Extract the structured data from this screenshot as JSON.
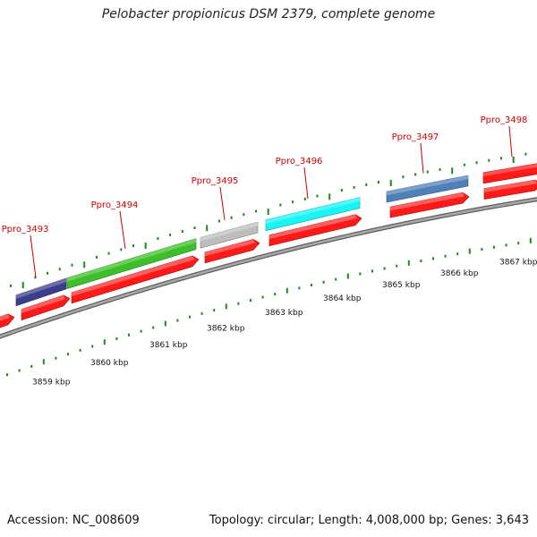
{
  "title": "Pelobacter propionicus DSM 2379, complete genome",
  "footer": {
    "accession": "Accession: NC_008609",
    "summary": "Topology: circular; Length: 4,008,000 bp; Genes: 3,643"
  },
  "colors": {
    "backbone": "#8c8c8c",
    "cds": "#ff1a1a",
    "gene_label": "#cc0000",
    "tick": "#1a8a1a",
    "features": {
      "Ppro_3493": "#3b3d8a",
      "Ppro_3494": "#3cbf28",
      "Ppro_3495": "#bdbdbd",
      "Ppro_3496": "#19f5f5",
      "Ppro_3497": "#4f80b8",
      "Ppro_3498": "#ff1a1a"
    }
  },
  "genes": [
    {
      "label": "Ppro_3493"
    },
    {
      "label": "Ppro_3494"
    },
    {
      "label": "Ppro_3495"
    },
    {
      "label": "Ppro_3496"
    },
    {
      "label": "Ppro_3497"
    },
    {
      "label": "Ppro_3498"
    }
  ],
  "scale_labels": [
    "3859 kbp",
    "3860 kbp",
    "3861 kbp",
    "3862 kbp",
    "3863 kbp",
    "3864 kbp",
    "3865 kbp",
    "3866 kbp",
    "3867 kbp"
  ]
}
